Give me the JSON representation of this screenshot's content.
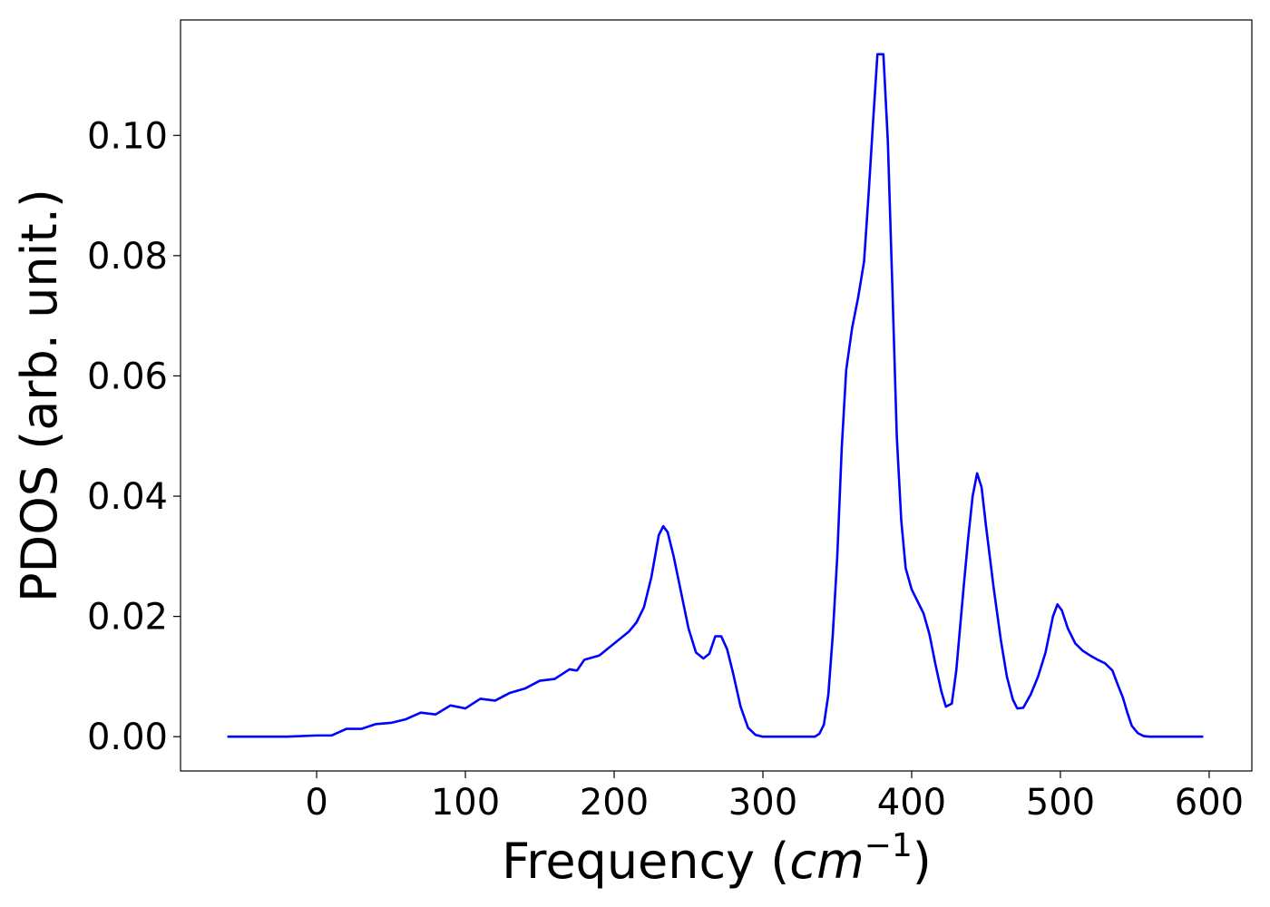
{
  "chart_data": {
    "type": "line",
    "xlabel_parts": [
      "Frequency (",
      "cm",
      "−1",
      ")"
    ],
    "ylabel": "PDOS (arb. unit.)",
    "x": [
      -60,
      -20,
      0,
      10,
      20,
      30,
      40,
      50,
      60,
      70,
      80,
      90,
      100,
      110,
      120,
      130,
      140,
      150,
      160,
      170,
      175,
      180,
      190,
      200,
      210,
      215,
      220,
      225,
      230,
      233,
      236,
      240,
      245,
      250,
      255,
      260,
      264,
      268,
      272,
      276,
      280,
      285,
      290,
      295,
      300,
      335,
      338,
      341,
      344,
      347,
      350,
      353,
      356,
      360,
      364,
      368,
      371,
      374,
      377,
      381,
      384,
      387,
      390,
      393,
      396,
      400,
      404,
      408,
      412,
      416,
      420,
      423,
      427,
      430,
      435,
      438,
      441,
      444,
      447,
      450,
      455,
      460,
      464,
      468,
      471,
      475,
      480,
      485,
      490,
      495,
      498,
      501,
      505,
      510,
      515,
      520,
      525,
      530,
      535,
      538,
      542,
      545,
      548,
      552,
      556,
      560,
      596
    ],
    "series": [
      {
        "color": "#0000ff",
        "values": [
          0,
          0,
          0.0002,
          0.0002,
          0.0013,
          0.0013,
          0.0021,
          0.0023,
          0.0029,
          0.004,
          0.0037,
          0.0052,
          0.0047,
          0.0063,
          0.006,
          0.0073,
          0.008,
          0.0093,
          0.0096,
          0.0112,
          0.011,
          0.0128,
          0.0135,
          0.0155,
          0.0175,
          0.019,
          0.0215,
          0.0265,
          0.0335,
          0.035,
          0.034,
          0.03,
          0.024,
          0.018,
          0.014,
          0.013,
          0.0138,
          0.0167,
          0.0167,
          0.0145,
          0.0105,
          0.005,
          0.0015,
          0.0003,
          0,
          0,
          0.0005,
          0.002,
          0.007,
          0.017,
          0.03,
          0.048,
          0.061,
          0.068,
          0.073,
          0.079,
          0.09,
          0.102,
          0.1135,
          0.1135,
          0.099,
          0.075,
          0.05,
          0.036,
          0.028,
          0.0245,
          0.0225,
          0.0205,
          0.017,
          0.012,
          0.0075,
          0.005,
          0.0055,
          0.011,
          0.025,
          0.033,
          0.04,
          0.0438,
          0.0415,
          0.035,
          0.025,
          0.016,
          0.01,
          0.0062,
          0.0047,
          0.0048,
          0.007,
          0.01,
          0.014,
          0.02,
          0.022,
          0.021,
          0.018,
          0.0155,
          0.0143,
          0.0135,
          0.0128,
          0.0122,
          0.011,
          0.009,
          0.0065,
          0.004,
          0.0018,
          0.0006,
          0.0001,
          0,
          0
        ]
      }
    ],
    "xlim": [
      -91.5,
      628.7
    ],
    "xticks": [
      0,
      100,
      200,
      300,
      400,
      500,
      600
    ],
    "ylim": [
      -0.0057,
      0.1192
    ],
    "yticks": [
      {
        "value": 0,
        "label": "0.00"
      },
      {
        "value": 0.02,
        "label": "0.02"
      },
      {
        "value": 0.04,
        "label": "0.04"
      },
      {
        "value": 0.06,
        "label": "0.06"
      },
      {
        "value": 0.08,
        "label": "0.08"
      },
      {
        "value": 0.1,
        "label": "0.10"
      }
    ],
    "grid": false
  }
}
